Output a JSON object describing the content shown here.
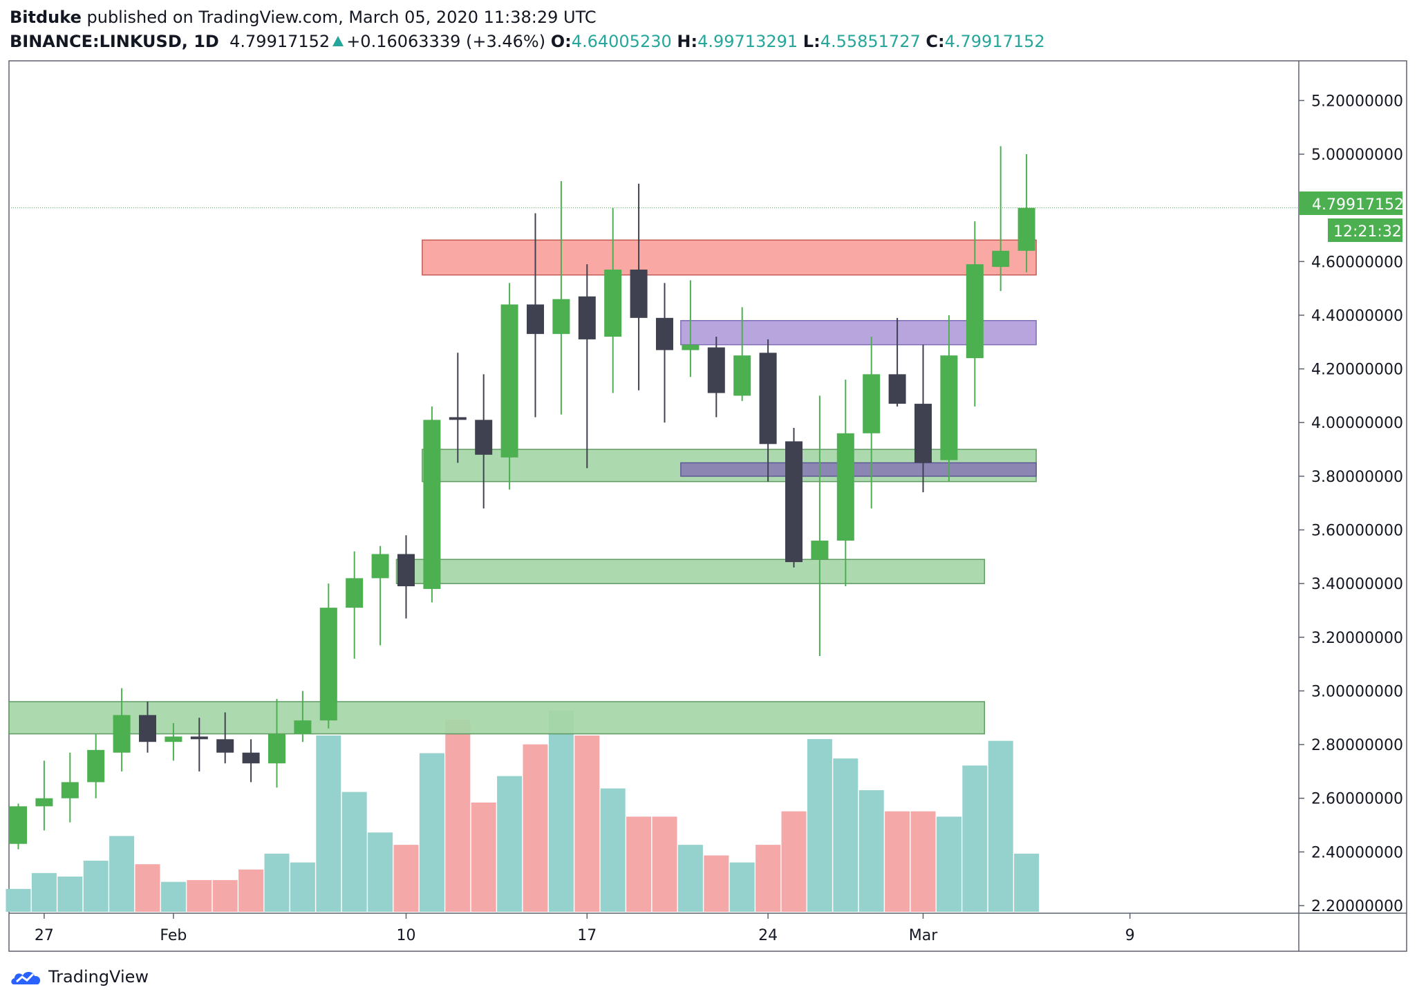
{
  "header": {
    "author": "Bitduke",
    "published_text": "published on TradingView.com, March 05, 2020 11:38:29 UTC",
    "symbol": "BINANCE:LINKUSD, 1D",
    "last_price": "4.79917152",
    "change": "+0.16063339 (+3.46%)",
    "open_label": "O:",
    "open": "4.64005230",
    "high_label": "H:",
    "high": "4.99713291",
    "low_label": "L:",
    "low": "4.55851727",
    "close_label": "C:",
    "close": "4.79917152"
  },
  "price_tag": {
    "price": "4.79917152",
    "countdown": "12:21:32"
  },
  "footer": {
    "brand": "TradingView"
  },
  "colors": {
    "up": "#4caf50",
    "down": "#3f4150",
    "vol_up": "#96d2cd",
    "vol_down": "#f5a8a8",
    "zone_green": "#a5d6a7",
    "zone_red": "#f8a19b",
    "zone_purple": "#b39ddb",
    "zone_dark_purple": "#8c86b3"
  },
  "chart_data": {
    "type": "candlestick",
    "ylim": [
      2.15,
      5.35
    ],
    "y_ticks": [
      "5.20000000",
      "5.00000000",
      "4.80000000",
      "4.60000000",
      "4.40000000",
      "4.20000000",
      "4.00000000",
      "3.80000000",
      "3.60000000",
      "3.40000000",
      "3.20000000",
      "3.00000000",
      "2.80000000",
      "2.60000000",
      "2.40000000",
      "2.20000000"
    ],
    "x_ticks": [
      {
        "label": "27",
        "i": 1
      },
      {
        "label": "Feb",
        "i": 6
      },
      {
        "label": "10",
        "i": 15
      },
      {
        "label": "17",
        "i": 22
      },
      {
        "label": "24",
        "i": 29
      },
      {
        "label": "Mar",
        "i": 35
      },
      {
        "label": "9",
        "i": 43
      }
    ],
    "candles": [
      {
        "date": "2020-01-26",
        "o": 2.43,
        "h": 2.58,
        "l": 2.41,
        "c": 2.57
      },
      {
        "date": "2020-01-27",
        "o": 2.57,
        "h": 2.74,
        "l": 2.48,
        "c": 2.6
      },
      {
        "date": "2020-01-28",
        "o": 2.6,
        "h": 2.77,
        "l": 2.51,
        "c": 2.66
      },
      {
        "date": "2020-01-29",
        "o": 2.66,
        "h": 2.84,
        "l": 2.6,
        "c": 2.78
      },
      {
        "date": "2020-01-30",
        "o": 2.77,
        "h": 3.01,
        "l": 2.7,
        "c": 2.91
      },
      {
        "date": "2020-01-31",
        "o": 2.91,
        "h": 2.96,
        "l": 2.77,
        "c": 2.81
      },
      {
        "date": "2020-02-01",
        "o": 2.81,
        "h": 2.88,
        "l": 2.74,
        "c": 2.83
      },
      {
        "date": "2020-02-02",
        "o": 2.83,
        "h": 2.9,
        "l": 2.7,
        "c": 2.82
      },
      {
        "date": "2020-02-03",
        "o": 2.82,
        "h": 2.92,
        "l": 2.73,
        "c": 2.77
      },
      {
        "date": "2020-02-04",
        "o": 2.77,
        "h": 2.82,
        "l": 2.66,
        "c": 2.73
      },
      {
        "date": "2020-02-05",
        "o": 2.73,
        "h": 2.97,
        "l": 2.64,
        "c": 2.84
      },
      {
        "date": "2020-02-06",
        "o": 2.84,
        "h": 3.0,
        "l": 2.81,
        "c": 2.89
      },
      {
        "date": "2020-02-07",
        "o": 2.89,
        "h": 3.4,
        "l": 2.86,
        "c": 3.31
      },
      {
        "date": "2020-02-08",
        "o": 3.31,
        "h": 3.52,
        "l": 3.12,
        "c": 3.42
      },
      {
        "date": "2020-02-09",
        "o": 3.42,
        "h": 3.54,
        "l": 3.17,
        "c": 3.51
      },
      {
        "date": "2020-02-10",
        "o": 3.51,
        "h": 3.58,
        "l": 3.27,
        "c": 3.39
      },
      {
        "date": "2020-02-11",
        "o": 3.38,
        "h": 4.06,
        "l": 3.33,
        "c": 4.01
      },
      {
        "date": "2020-02-12",
        "o": 4.02,
        "h": 4.26,
        "l": 3.85,
        "c": 4.01
      },
      {
        "date": "2020-02-13",
        "o": 4.01,
        "h": 4.18,
        "l": 3.68,
        "c": 3.88
      },
      {
        "date": "2020-02-14",
        "o": 3.87,
        "h": 4.52,
        "l": 3.75,
        "c": 4.44
      },
      {
        "date": "2020-02-15",
        "o": 4.44,
        "h": 4.78,
        "l": 4.02,
        "c": 4.33
      },
      {
        "date": "2020-02-16",
        "o": 4.33,
        "h": 4.9,
        "l": 4.03,
        "c": 4.46
      },
      {
        "date": "2020-02-17",
        "o": 4.47,
        "h": 4.59,
        "l": 3.83,
        "c": 4.31
      },
      {
        "date": "2020-02-18",
        "o": 4.32,
        "h": 4.8,
        "l": 4.11,
        "c": 4.57
      },
      {
        "date": "2020-02-19",
        "o": 4.57,
        "h": 4.89,
        "l": 4.12,
        "c": 4.39
      },
      {
        "date": "2020-02-20",
        "o": 4.39,
        "h": 4.52,
        "l": 4.0,
        "c": 4.27
      },
      {
        "date": "2020-02-21",
        "o": 4.27,
        "h": 4.53,
        "l": 4.17,
        "c": 4.29
      },
      {
        "date": "2020-02-22",
        "o": 4.28,
        "h": 4.32,
        "l": 4.02,
        "c": 4.11
      },
      {
        "date": "2020-02-23",
        "o": 4.1,
        "h": 4.43,
        "l": 4.08,
        "c": 4.25
      },
      {
        "date": "2020-02-24",
        "o": 4.26,
        "h": 4.31,
        "l": 3.78,
        "c": 3.92
      },
      {
        "date": "2020-02-25",
        "o": 3.93,
        "h": 3.98,
        "l": 3.46,
        "c": 3.48
      },
      {
        "date": "2020-02-26",
        "o": 3.49,
        "h": 4.1,
        "l": 3.13,
        "c": 3.56
      },
      {
        "date": "2020-02-27",
        "o": 3.56,
        "h": 4.16,
        "l": 3.39,
        "c": 3.96
      },
      {
        "date": "2020-02-28",
        "o": 3.96,
        "h": 4.32,
        "l": 3.68,
        "c": 4.18
      },
      {
        "date": "2020-02-29",
        "o": 4.18,
        "h": 4.39,
        "l": 4.06,
        "c": 4.07
      },
      {
        "date": "2020-03-01",
        "o": 4.07,
        "h": 4.29,
        "l": 3.74,
        "c": 3.85
      },
      {
        "date": "2020-03-02",
        "o": 3.86,
        "h": 4.4,
        "l": 3.78,
        "c": 4.25
      },
      {
        "date": "2020-03-03",
        "o": 4.24,
        "h": 4.75,
        "l": 4.06,
        "c": 4.59
      },
      {
        "date": "2020-03-04",
        "o": 4.58,
        "h": 5.03,
        "l": 4.49,
        "c": 4.64
      },
      {
        "date": "2020-03-05",
        "o": 4.64,
        "h": 5.0,
        "l": 4.56,
        "c": 4.8
      }
    ],
    "volume_relative": [
      0.13,
      0.22,
      0.2,
      0.29,
      0.43,
      0.27,
      0.17,
      0.18,
      0.18,
      0.24,
      0.33,
      0.28,
      1.0,
      0.68,
      0.45,
      0.38,
      0.9,
      1.09,
      0.62,
      0.77,
      0.95,
      1.14,
      1.0,
      0.7,
      0.54,
      0.54,
      0.38,
      0.32,
      0.28,
      0.38,
      0.57,
      0.98,
      0.87,
      0.69,
      0.57,
      0.57,
      0.54,
      0.83,
      0.97,
      0.33
    ],
    "zones": [
      {
        "type": "resistance",
        "color": "red",
        "from": "2020-02-11",
        "to": "2020-03-05",
        "low": 4.55,
        "high": 4.68
      },
      {
        "type": "level",
        "color": "purple",
        "from": "2020-02-21",
        "to": "2020-03-05",
        "low": 4.29,
        "high": 4.38
      },
      {
        "type": "support",
        "color": "green",
        "from": "2020-02-11",
        "to": "2020-03-05",
        "low": 3.78,
        "high": 3.9
      },
      {
        "type": "level",
        "color": "dark-purple",
        "from": "2020-02-21",
        "to": "2020-03-05",
        "low": 3.8,
        "high": 3.85
      },
      {
        "type": "support",
        "color": "green",
        "from": "2020-02-10",
        "to": "2020-03-03",
        "low": 3.4,
        "high": 3.49
      },
      {
        "type": "support",
        "color": "green",
        "from": "2020-01-26",
        "to": "2020-03-03",
        "low": 2.84,
        "high": 2.96
      }
    ],
    "last_price_line": 4.8
  }
}
